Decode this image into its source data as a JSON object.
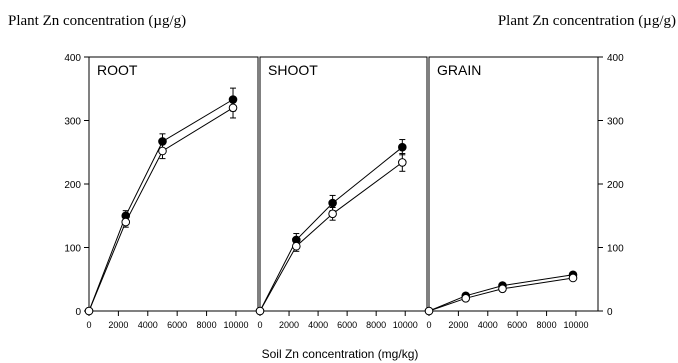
{
  "chart_data": {
    "type": "line",
    "left_ylabel": "Plant Zn concentration (µg/g)",
    "right_ylabel": "Plant Zn concentration (µg/g)",
    "xlabel": "Soil Zn concentration (mg/kg)",
    "ylim": [
      0,
      400
    ],
    "yticks": [
      0,
      100,
      200,
      300,
      400
    ],
    "xlim": [
      0,
      11500
    ],
    "xticks": [
      0,
      2000,
      4000,
      6000,
      8000,
      10000
    ],
    "x_tick_labels": [
      "0",
      "2000",
      "4000",
      "6000",
      "8000",
      "10000"
    ],
    "y_tick_labels": [
      "0",
      "100",
      "200",
      "300",
      "400"
    ],
    "colors": {
      "filled": "#000000",
      "open": "#ffffff",
      "line": "#000000"
    },
    "panels": [
      {
        "title": "ROOT",
        "x": [
          0,
          2500,
          5000,
          9800
        ],
        "series": [
          {
            "marker": "filled-circle",
            "values": [
              0,
              150,
              267,
              333
            ],
            "errors": [
              0,
              8,
              12,
              18
            ]
          },
          {
            "marker": "open-circle",
            "values": [
              0,
              140,
              252,
              320
            ],
            "errors": [
              0,
              8,
              12,
              16
            ]
          }
        ]
      },
      {
        "title": "SHOOT",
        "x": [
          0,
          2500,
          5000,
          9800
        ],
        "series": [
          {
            "marker": "filled-circle",
            "values": [
              0,
              112,
              170,
              258
            ],
            "errors": [
              0,
              10,
              12,
              12
            ]
          },
          {
            "marker": "open-circle",
            "values": [
              0,
              102,
              153,
              234
            ],
            "errors": [
              0,
              8,
              10,
              14
            ]
          }
        ]
      },
      {
        "title": "GRAIN",
        "x": [
          0,
          2500,
          5000,
          9800
        ],
        "series": [
          {
            "marker": "filled-circle",
            "values": [
              0,
              24,
              40,
              57
            ],
            "errors": [
              0,
              0,
              0,
              0
            ]
          },
          {
            "marker": "open-circle",
            "values": [
              0,
              20,
              35,
              52
            ],
            "errors": [
              0,
              0,
              0,
              0
            ]
          }
        ]
      }
    ]
  }
}
